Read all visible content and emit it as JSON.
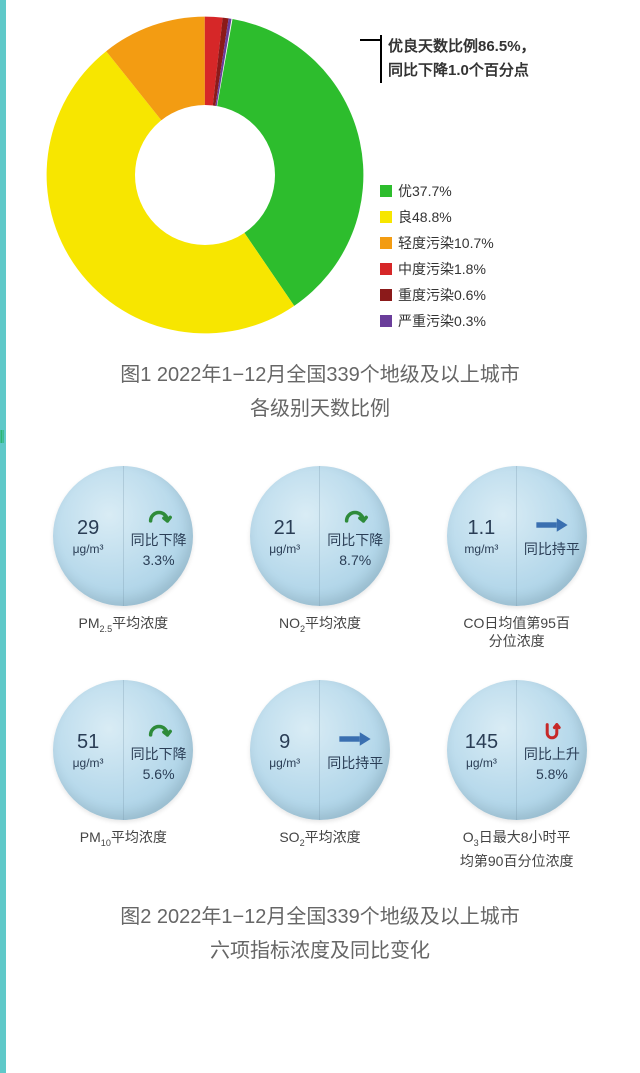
{
  "donut": {
    "type": "donut",
    "summary_lines": [
      "优良天数比例86.5%，",
      "同比下降1.0个百分点"
    ],
    "slices": [
      {
        "label": "优",
        "pct": 37.7,
        "display": "优37.7%",
        "color": "#2dbd2d"
      },
      {
        "label": "良",
        "pct": 48.8,
        "display": "良48.8%",
        "color": "#f7e600"
      },
      {
        "label": "轻度污染",
        "pct": 10.7,
        "display": "轻度污染10.7%",
        "color": "#f39c12"
      },
      {
        "label": "中度污染",
        "pct": 1.8,
        "display": "中度污染1.8%",
        "color": "#d62728"
      },
      {
        "label": "重度污染",
        "pct": 0.6,
        "display": "重度污染0.6%",
        "color": "#8b1a1a"
      },
      {
        "label": "严重污染",
        "pct": 0.3,
        "display": "严重污染0.3%",
        "color": "#6a3d9a"
      }
    ],
    "start_angle_offset_deg": 10,
    "background": "#ffffff",
    "hole_ratio": 0.42
  },
  "caption1_lines": [
    "图1  2022年1−12月全国339个地级及以上城市",
    "各级别天数比例"
  ],
  "pollutants": [
    {
      "value": "29",
      "unit": "μg/m³",
      "trend": "down",
      "change": "3.3%",
      "change_label": "同比下降",
      "label_html": "PM<sub>2.5</sub>平均浓度"
    },
    {
      "value": "21",
      "unit": "μg/m³",
      "trend": "down",
      "change": "8.7%",
      "change_label": "同比下降",
      "label_html": "NO<sub>2</sub>平均浓度"
    },
    {
      "value": "1.1",
      "unit": "mg/m³",
      "trend": "flat",
      "change": "",
      "change_label": "同比持平",
      "label_html": "CO日均值第95百<br>分位浓度"
    },
    {
      "value": "51",
      "unit": "μg/m³",
      "trend": "down",
      "change": "5.6%",
      "change_label": "同比下降",
      "label_html": "PM<sub>10</sub>平均浓度"
    },
    {
      "value": "9",
      "unit": "μg/m³",
      "trend": "flat",
      "change": "",
      "change_label": "同比持平",
      "label_html": "SO<sub>2</sub>平均浓度"
    },
    {
      "value": "145",
      "unit": "μg/m³",
      "trend": "up",
      "change": "5.8%",
      "change_label": "同比上升",
      "label_html": "O<sub>3</sub>日最大8小时平<br>均第90百分位浓度"
    }
  ],
  "caption2_lines": [
    "图2  2022年1−12月全国339个地级及以上城市",
    "六项指标浓度及同比变化"
  ],
  "axis_icon": "|||"
}
